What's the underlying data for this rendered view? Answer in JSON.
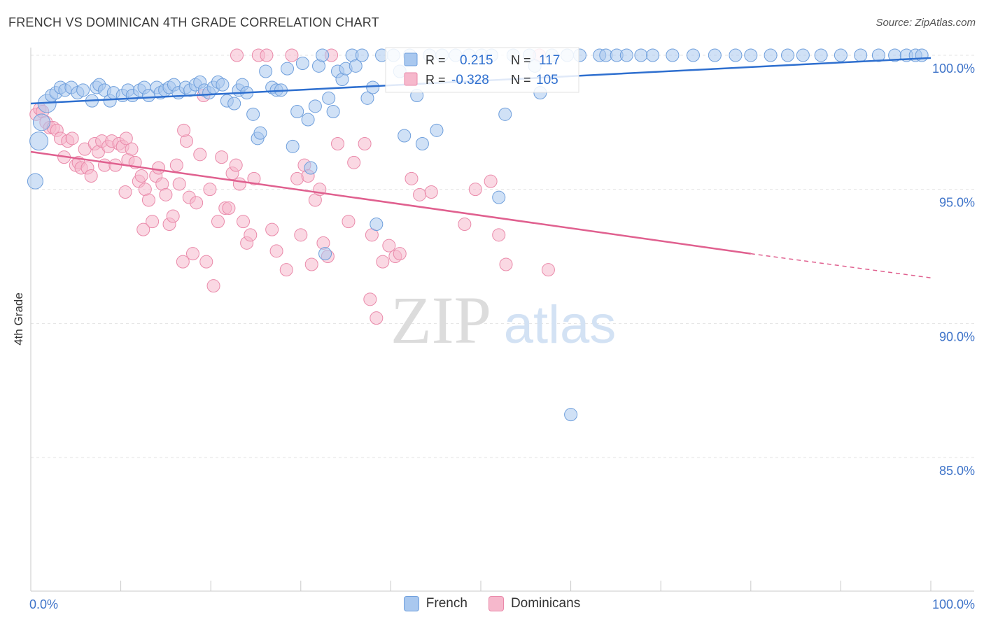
{
  "title": "FRENCH VS DOMINICAN 4TH GRADE CORRELATION CHART",
  "source": "Source: ZipAtlas.com",
  "watermark": {
    "zip": "ZIP",
    "atlas": "atlas"
  },
  "colors": {
    "french_fill": "#a9c8ef",
    "french_stroke": "#6f9fdc",
    "french_line": "#2e6fcf",
    "dom_fill": "#f6b8cc",
    "dom_stroke": "#ea8aaa",
    "dom_line": "#e0608f",
    "axis_text": "#3f74c9",
    "grid": "#e3e3e3"
  },
  "stats": {
    "r_label": "R =",
    "n_label": "N =",
    "french": {
      "r": "0.215",
      "n": "117"
    },
    "dominicans": {
      "r": "-0.328",
      "n": "105"
    }
  },
  "chart_data": {
    "type": "scatter",
    "xlabel": "",
    "ylabel": "4th Grade",
    "xlim": [
      0,
      100
    ],
    "ylim": [
      80.5,
      100.5
    ],
    "x_tick_labels": [
      "0.0%",
      "100.0%"
    ],
    "y_ticks": [
      85,
      90,
      95,
      100
    ],
    "y_tick_labels": [
      "85.0%",
      "90.0%",
      "95.0%",
      "100.0%"
    ],
    "grid": true,
    "legend_position": "bottom",
    "series": [
      {
        "name": "French",
        "trend": {
          "x": [
            0,
            100
          ],
          "y": [
            98.2,
            99.9
          ]
        },
        "points": [
          [
            0.5,
            95.3
          ],
          [
            0.9,
            96.8
          ],
          [
            1.2,
            97.5
          ],
          [
            1.8,
            98.2
          ],
          [
            2.3,
            98.5
          ],
          [
            2.8,
            98.6
          ],
          [
            3.3,
            98.8
          ],
          [
            3.8,
            98.7
          ],
          [
            4.5,
            98.8
          ],
          [
            5.2,
            98.6
          ],
          [
            5.8,
            98.7
          ],
          [
            6.8,
            98.3
          ],
          [
            7.3,
            98.8
          ],
          [
            7.6,
            98.9
          ],
          [
            8.2,
            98.7
          ],
          [
            8.8,
            98.3
          ],
          [
            9.2,
            98.6
          ],
          [
            10.2,
            98.5
          ],
          [
            10.8,
            98.7
          ],
          [
            11.3,
            98.5
          ],
          [
            12.1,
            98.7
          ],
          [
            12.6,
            98.8
          ],
          [
            13.1,
            98.5
          ],
          [
            14.0,
            98.8
          ],
          [
            14.4,
            98.6
          ],
          [
            14.9,
            98.7
          ],
          [
            15.4,
            98.8
          ],
          [
            15.9,
            98.9
          ],
          [
            16.4,
            98.6
          ],
          [
            17.2,
            98.8
          ],
          [
            17.7,
            98.7
          ],
          [
            18.3,
            98.9
          ],
          [
            18.8,
            99.0
          ],
          [
            19.3,
            98.7
          ],
          [
            19.8,
            98.6
          ],
          [
            20.3,
            98.8
          ],
          [
            20.8,
            99.0
          ],
          [
            21.3,
            98.9
          ],
          [
            21.8,
            98.3
          ],
          [
            22.6,
            98.2
          ],
          [
            23.1,
            98.7
          ],
          [
            23.5,
            98.9
          ],
          [
            24.0,
            98.6
          ],
          [
            24.7,
            97.8
          ],
          [
            25.2,
            96.9
          ],
          [
            25.5,
            97.1
          ],
          [
            26.1,
            99.4
          ],
          [
            26.8,
            98.8
          ],
          [
            27.3,
            98.7
          ],
          [
            27.8,
            98.7
          ],
          [
            28.5,
            99.5
          ],
          [
            29.1,
            96.6
          ],
          [
            29.6,
            97.9
          ],
          [
            30.2,
            99.7
          ],
          [
            30.8,
            97.6
          ],
          [
            31.1,
            95.8
          ],
          [
            32.0,
            99.6
          ],
          [
            32.4,
            100.0
          ],
          [
            32.7,
            92.6
          ],
          [
            33.1,
            98.4
          ],
          [
            33.6,
            97.9
          ],
          [
            34.1,
            99.4
          ],
          [
            34.6,
            99.1
          ],
          [
            35.0,
            99.5
          ],
          [
            35.7,
            100.0
          ],
          [
            36.1,
            99.6
          ],
          [
            36.8,
            100.0
          ],
          [
            37.4,
            98.4
          ],
          [
            38.0,
            98.8
          ],
          [
            38.4,
            93.7
          ],
          [
            39.0,
            100.0
          ],
          [
            40.3,
            100.0
          ],
          [
            41.0,
            99.4
          ],
          [
            42.1,
            100.0
          ],
          [
            42.9,
            98.5
          ],
          [
            43.5,
            96.7
          ],
          [
            44.3,
            100.0
          ],
          [
            45.7,
            100.0
          ],
          [
            47.2,
            100.0
          ],
          [
            48.7,
            100.0
          ],
          [
            50.1,
            100.0
          ],
          [
            51.2,
            100.0
          ],
          [
            52.0,
            94.7
          ],
          [
            52.7,
            97.8
          ],
          [
            53.6,
            100.0
          ],
          [
            55.4,
            100.0
          ],
          [
            56.0,
            99.6
          ],
          [
            56.6,
            98.6
          ],
          [
            57.9,
            100.0
          ],
          [
            59.6,
            100.0
          ],
          [
            61.0,
            100.0
          ],
          [
            63.2,
            100.0
          ],
          [
            63.9,
            100.0
          ],
          [
            65.1,
            100.0
          ],
          [
            66.2,
            100.0
          ],
          [
            67.8,
            100.0
          ],
          [
            69.1,
            100.0
          ],
          [
            71.3,
            100.0
          ],
          [
            73.6,
            100.0
          ],
          [
            76.0,
            100.0
          ],
          [
            78.3,
            100.0
          ],
          [
            80.0,
            100.0
          ],
          [
            82.2,
            100.0
          ],
          [
            84.1,
            100.0
          ],
          [
            85.8,
            100.0
          ],
          [
            87.8,
            100.0
          ],
          [
            90.0,
            100.0
          ],
          [
            92.2,
            100.0
          ],
          [
            94.2,
            100.0
          ],
          [
            96.0,
            100.0
          ],
          [
            97.3,
            100.0
          ],
          [
            98.3,
            100.0
          ],
          [
            99.0,
            100.0
          ],
          [
            60.0,
            86.6
          ],
          [
            41.5,
            97.0
          ],
          [
            45.1,
            97.2
          ],
          [
            31.6,
            98.1
          ]
        ]
      },
      {
        "name": "Dominicans",
        "trend": {
          "x": [
            0,
            80
          ],
          "y": [
            96.4,
            92.6
          ]
        },
        "trend_dashed": {
          "x": [
            80,
            100
          ],
          "y": [
            92.6,
            91.7
          ]
        },
        "points": [
          [
            0.6,
            97.8
          ],
          [
            1.0,
            98.0
          ],
          [
            1.3,
            97.9
          ],
          [
            1.7,
            97.5
          ],
          [
            2.1,
            97.3
          ],
          [
            2.5,
            97.3
          ],
          [
            2.9,
            97.2
          ],
          [
            3.3,
            96.9
          ],
          [
            3.7,
            96.2
          ],
          [
            4.1,
            96.8
          ],
          [
            4.6,
            96.9
          ],
          [
            5.0,
            95.9
          ],
          [
            5.3,
            96.0
          ],
          [
            5.6,
            95.8
          ],
          [
            6.0,
            96.5
          ],
          [
            6.3,
            95.8
          ],
          [
            6.7,
            95.5
          ],
          [
            7.1,
            96.7
          ],
          [
            7.5,
            96.4
          ],
          [
            7.9,
            96.8
          ],
          [
            8.2,
            95.9
          ],
          [
            8.6,
            96.6
          ],
          [
            9.0,
            96.8
          ],
          [
            9.4,
            95.9
          ],
          [
            9.8,
            96.7
          ],
          [
            10.2,
            96.6
          ],
          [
            10.5,
            94.9
          ],
          [
            10.8,
            96.1
          ],
          [
            11.2,
            96.5
          ],
          [
            11.6,
            96.0
          ],
          [
            12.0,
            95.3
          ],
          [
            12.3,
            95.5
          ],
          [
            12.7,
            95.0
          ],
          [
            13.1,
            94.6
          ],
          [
            13.5,
            93.8
          ],
          [
            13.9,
            95.5
          ],
          [
            14.2,
            95.8
          ],
          [
            14.6,
            95.2
          ],
          [
            15.0,
            94.8
          ],
          [
            15.4,
            93.7
          ],
          [
            15.8,
            94.0
          ],
          [
            16.2,
            95.9
          ],
          [
            16.5,
            95.2
          ],
          [
            16.9,
            92.3
          ],
          [
            17.3,
            96.8
          ],
          [
            17.6,
            94.7
          ],
          [
            18.0,
            92.6
          ],
          [
            18.4,
            94.5
          ],
          [
            18.8,
            96.3
          ],
          [
            19.2,
            98.5
          ],
          [
            19.5,
            92.3
          ],
          [
            19.9,
            95.0
          ],
          [
            20.3,
            91.4
          ],
          [
            20.8,
            93.8
          ],
          [
            21.2,
            96.2
          ],
          [
            21.6,
            94.3
          ],
          [
            22.0,
            94.3
          ],
          [
            22.4,
            95.6
          ],
          [
            22.8,
            95.9
          ],
          [
            23.2,
            95.2
          ],
          [
            23.6,
            93.8
          ],
          [
            24.0,
            93.0
          ],
          [
            24.4,
            93.3
          ],
          [
            24.8,
            95.4
          ],
          [
            25.3,
            100.0
          ],
          [
            26.2,
            100.0
          ],
          [
            26.8,
            93.5
          ],
          [
            27.3,
            92.7
          ],
          [
            28.4,
            92.0
          ],
          [
            29.0,
            100.0
          ],
          [
            29.6,
            95.4
          ],
          [
            30.0,
            93.3
          ],
          [
            30.4,
            95.9
          ],
          [
            30.8,
            95.5
          ],
          [
            31.2,
            92.2
          ],
          [
            31.6,
            94.6
          ],
          [
            32.1,
            95.0
          ],
          [
            32.5,
            93.0
          ],
          [
            33.0,
            92.5
          ],
          [
            33.4,
            100.0
          ],
          [
            34.1,
            96.7
          ],
          [
            35.3,
            93.8
          ],
          [
            35.9,
            96.0
          ],
          [
            37.1,
            96.7
          ],
          [
            37.9,
            93.3
          ],
          [
            38.4,
            90.2
          ],
          [
            39.1,
            92.3
          ],
          [
            39.8,
            92.9
          ],
          [
            40.5,
            92.5
          ],
          [
            41.0,
            92.6
          ],
          [
            42.3,
            95.4
          ],
          [
            43.2,
            94.8
          ],
          [
            44.5,
            94.9
          ],
          [
            48.2,
            93.7
          ],
          [
            49.4,
            95.0
          ],
          [
            51.1,
            95.3
          ],
          [
            52.0,
            93.3
          ],
          [
            52.8,
            92.2
          ],
          [
            56.5,
            100.0
          ],
          [
            57.5,
            92.0
          ],
          [
            12.5,
            93.5
          ],
          [
            17.0,
            97.2
          ],
          [
            22.9,
            100.0
          ],
          [
            37.7,
            90.9
          ],
          [
            10.6,
            96.9
          ]
        ]
      }
    ]
  }
}
